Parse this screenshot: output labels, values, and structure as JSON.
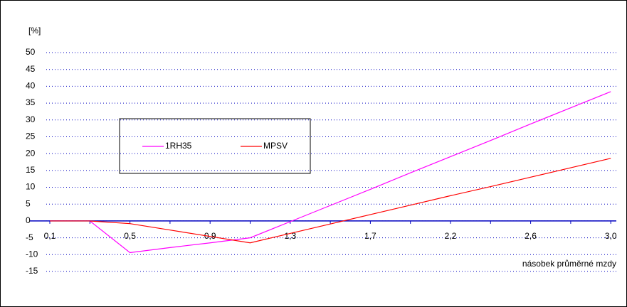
{
  "chart_data": {
    "type": "line",
    "y_label": "[%]",
    "x_label": "násobek průměrné mzdy",
    "categories": [
      "0,1",
      null,
      "0,5",
      null,
      "0,9",
      null,
      "1,3",
      null,
      "1,7",
      null,
      "2,2",
      null,
      "2,6",
      null,
      "3,0"
    ],
    "series": [
      {
        "name": "1RH35",
        "color": "#ff00ff",
        "values": [
          0,
          0,
          -9.4,
          -7.9,
          -6.5,
          -5,
          -0.2,
          4.6,
          9.4,
          14.3,
          19.1,
          23.9,
          28.8,
          33.6,
          38.4
        ]
      },
      {
        "name": "MPSV",
        "color": "#ff0000",
        "values": [
          0,
          0,
          -0.8,
          -2.7,
          -4.6,
          -6.5,
          -3.7,
          -0.9,
          1.9,
          4.7,
          7.5,
          10.2,
          13.0,
          15.8,
          18.6
        ]
      }
    ],
    "ylim": [
      -15,
      50
    ],
    "yticks": [
      -15,
      -10,
      -5,
      0,
      5,
      10,
      15,
      20,
      25,
      30,
      35,
      40,
      45,
      50
    ],
    "grid": true
  }
}
